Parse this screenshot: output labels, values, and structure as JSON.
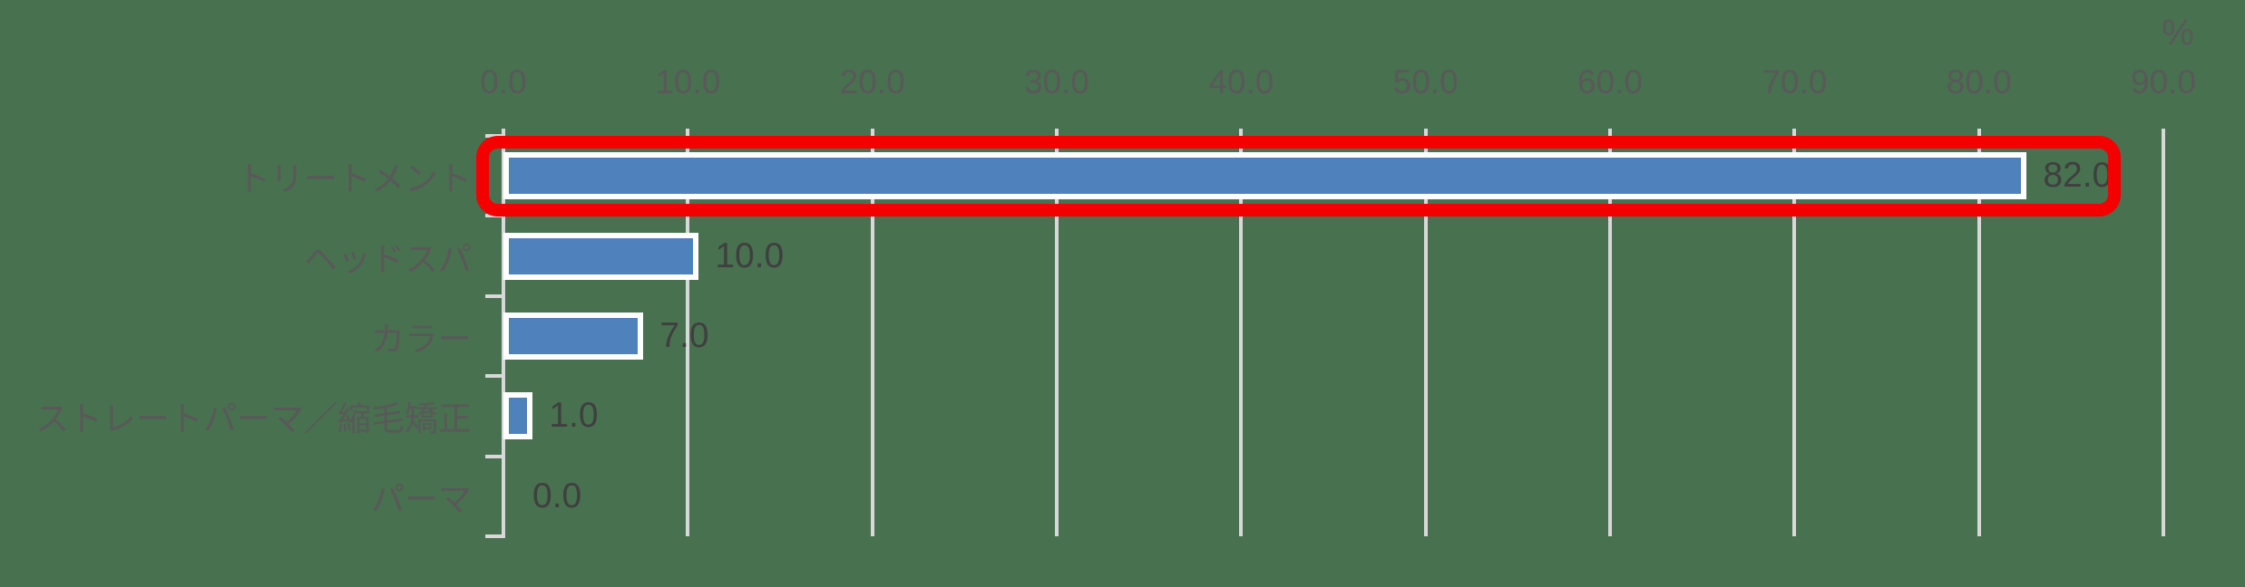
{
  "unit_label": "%",
  "colors": {
    "background": "#48714F",
    "bar_fill": "#4F81BD",
    "bar_border": "#FFFFFF",
    "gridline": "#D8D8D8",
    "tick_label": "#595959",
    "category_label": "#595959",
    "value_label": "#3F3F3F",
    "highlight": "#F40000"
  },
  "chart_data": {
    "type": "bar",
    "orientation": "horizontal",
    "title": "",
    "xlabel": "",
    "ylabel": "",
    "unit": "%",
    "categories": [
      "トリートメント",
      "ヘッドスパ",
      "カラー",
      "ストレートパーマ／縮毛矯正",
      "パーマ"
    ],
    "values": [
      82.0,
      10.0,
      7.0,
      1.0,
      0.0
    ],
    "value_labels": [
      "82.0",
      "10.0",
      "7.0",
      "1.0",
      "0.0"
    ],
    "x_tick_labels": [
      "0.0",
      "10.0",
      "20.0",
      "30.0",
      "40.0",
      "50.0",
      "60.0",
      "70.0",
      "80.0",
      "90.0"
    ],
    "xlim": [
      0,
      90
    ],
    "tick_step": 10,
    "grid": true,
    "legend": false,
    "axis_position": "top",
    "highlighted_index": 0,
    "highlighted_category": "トリートメント",
    "highlight_style": "red-rounded-rectangle"
  }
}
